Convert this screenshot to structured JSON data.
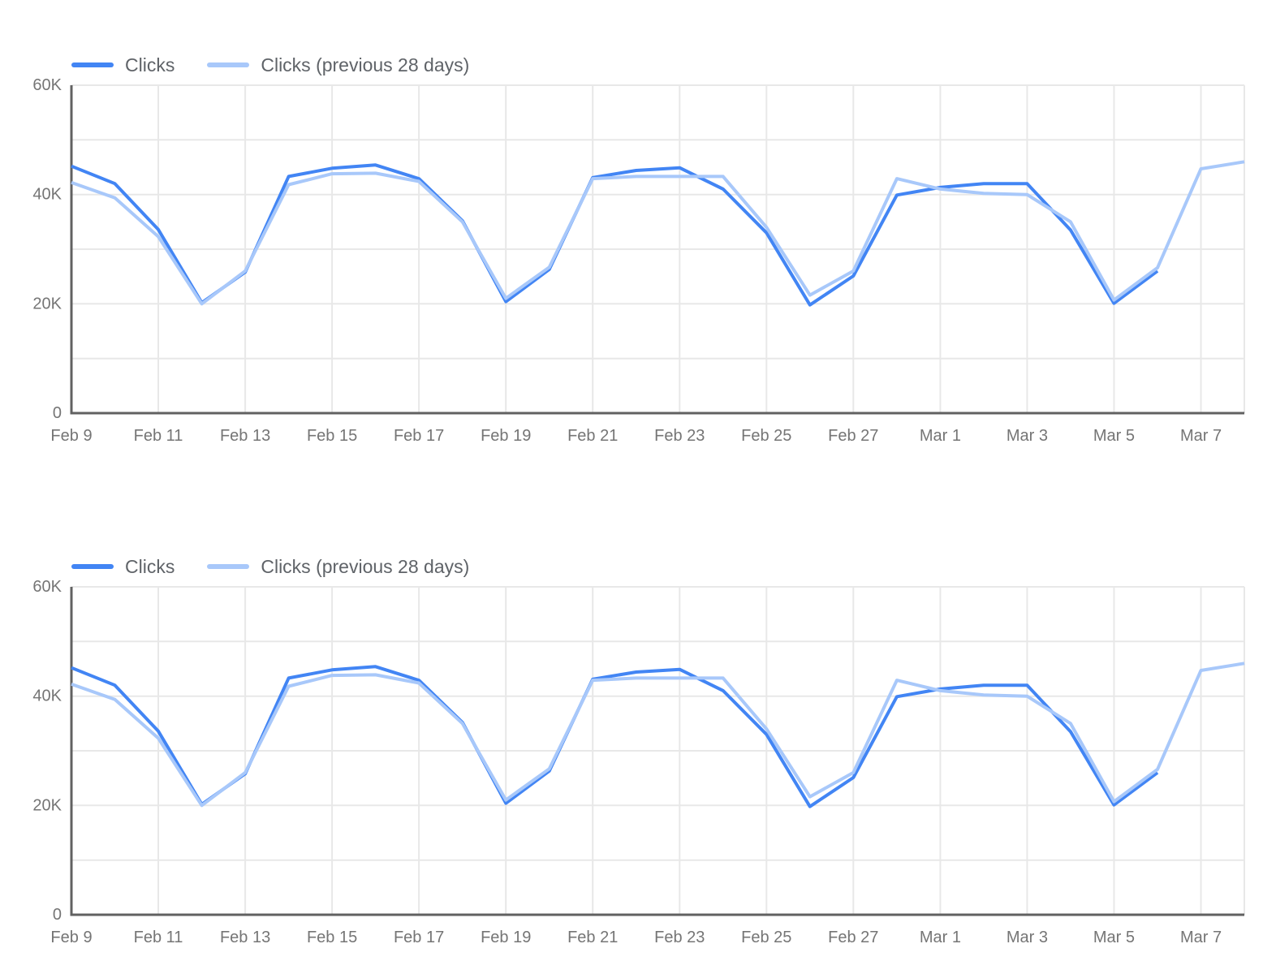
{
  "style": {
    "background": "#FFFFFF",
    "grid_color": "#E8E8E8",
    "axis_color": "#616161",
    "tick_label_color": "#757575",
    "legend_text_color": "#5F6368",
    "clicks_color": "#4285F4",
    "clicks_previous_color": "#A8C8FA"
  },
  "chart_data": [
    {
      "type": "line",
      "title": "",
      "xlabel": "",
      "ylabel": "",
      "grid": true,
      "legend_position": "top",
      "ylim": [
        0,
        60000
      ],
      "y_grid_step": 10000,
      "y_tick_values": [
        0,
        20000,
        40000,
        60000
      ],
      "y_tick_labels": [
        "0",
        "20K",
        "40K",
        "60K"
      ],
      "x": [
        "Feb 9",
        "Feb 10",
        "Feb 11",
        "Feb 12",
        "Feb 13",
        "Feb 14",
        "Feb 15",
        "Feb 16",
        "Feb 17",
        "Feb 18",
        "Feb 19",
        "Feb 20",
        "Feb 21",
        "Feb 22",
        "Feb 23",
        "Feb 24",
        "Feb 25",
        "Feb 26",
        "Feb 27",
        "Feb 28",
        "Mar 1",
        "Mar 2",
        "Mar 3",
        "Mar 4",
        "Mar 5",
        "Mar 6",
        "Mar 7",
        "Mar 8"
      ],
      "x_tick_indices": [
        0,
        2,
        4,
        6,
        8,
        10,
        12,
        14,
        16,
        18,
        20,
        22,
        24,
        26
      ],
      "x_tick_labels": [
        "Feb 9",
        "Feb 11",
        "Feb 13",
        "Feb 15",
        "Feb 17",
        "Feb 19",
        "Feb 21",
        "Feb 23",
        "Feb 25",
        "Feb 27",
        "Mar 1",
        "Mar 3",
        "Mar 5",
        "Mar 7"
      ],
      "series": [
        {
          "name": "Clicks",
          "color": "#4285F4",
          "values": [
            45200,
            42000,
            33600,
            20200,
            25800,
            43300,
            44800,
            45400,
            42900,
            35200,
            20400,
            26300,
            43100,
            44400,
            44900,
            41000,
            33000,
            19800,
            25100,
            39900,
            41300,
            42000,
            42000,
            33500,
            20100,
            26000,
            null,
            null
          ]
        },
        {
          "name": "Clicks (previous 28 days)",
          "color": "#A8C8FA",
          "values": [
            42200,
            39400,
            32300,
            20000,
            26000,
            41800,
            43800,
            43900,
            42400,
            35000,
            21000,
            26700,
            42900,
            43300,
            43300,
            43300,
            34000,
            21600,
            26000,
            42900,
            41000,
            40200,
            40000,
            35000,
            20700,
            26600,
            44700,
            46000
          ]
        }
      ]
    },
    {
      "type": "line",
      "title": "",
      "xlabel": "",
      "ylabel": "",
      "grid": true,
      "legend_position": "top",
      "ylim": [
        0,
        60000
      ],
      "y_grid_step": 10000,
      "y_tick_values": [
        0,
        20000,
        40000,
        60000
      ],
      "y_tick_labels": [
        "0",
        "20K",
        "40K",
        "60K"
      ],
      "x": [
        "Feb 9",
        "Feb 10",
        "Feb 11",
        "Feb 12",
        "Feb 13",
        "Feb 14",
        "Feb 15",
        "Feb 16",
        "Feb 17",
        "Feb 18",
        "Feb 19",
        "Feb 20",
        "Feb 21",
        "Feb 22",
        "Feb 23",
        "Feb 24",
        "Feb 25",
        "Feb 26",
        "Feb 27",
        "Feb 28",
        "Mar 1",
        "Mar 2",
        "Mar 3",
        "Mar 4",
        "Mar 5",
        "Mar 6",
        "Mar 7",
        "Mar 8"
      ],
      "x_tick_indices": [
        0,
        2,
        4,
        6,
        8,
        10,
        12,
        14,
        16,
        18,
        20,
        22,
        24,
        26
      ],
      "x_tick_labels": [
        "Feb 9",
        "Feb 11",
        "Feb 13",
        "Feb 15",
        "Feb 17",
        "Feb 19",
        "Feb 21",
        "Feb 23",
        "Feb 25",
        "Feb 27",
        "Mar 1",
        "Mar 3",
        "Mar 5",
        "Mar 7"
      ],
      "series": [
        {
          "name": "Clicks",
          "color": "#4285F4",
          "values": [
            45200,
            42000,
            33600,
            20200,
            25800,
            43300,
            44800,
            45400,
            42900,
            35200,
            20400,
            26300,
            43100,
            44400,
            44900,
            41000,
            33000,
            19800,
            25100,
            39900,
            41300,
            42000,
            42000,
            33500,
            20100,
            26000,
            null,
            null
          ]
        },
        {
          "name": "Clicks (previous 28 days)",
          "color": "#A8C8FA",
          "values": [
            42200,
            39400,
            32300,
            20000,
            26000,
            41800,
            43800,
            43900,
            42400,
            35000,
            21000,
            26700,
            42900,
            43300,
            43300,
            43300,
            34000,
            21600,
            26000,
            42900,
            41000,
            40200,
            40000,
            35000,
            20700,
            26600,
            44700,
            46000
          ]
        }
      ]
    }
  ]
}
